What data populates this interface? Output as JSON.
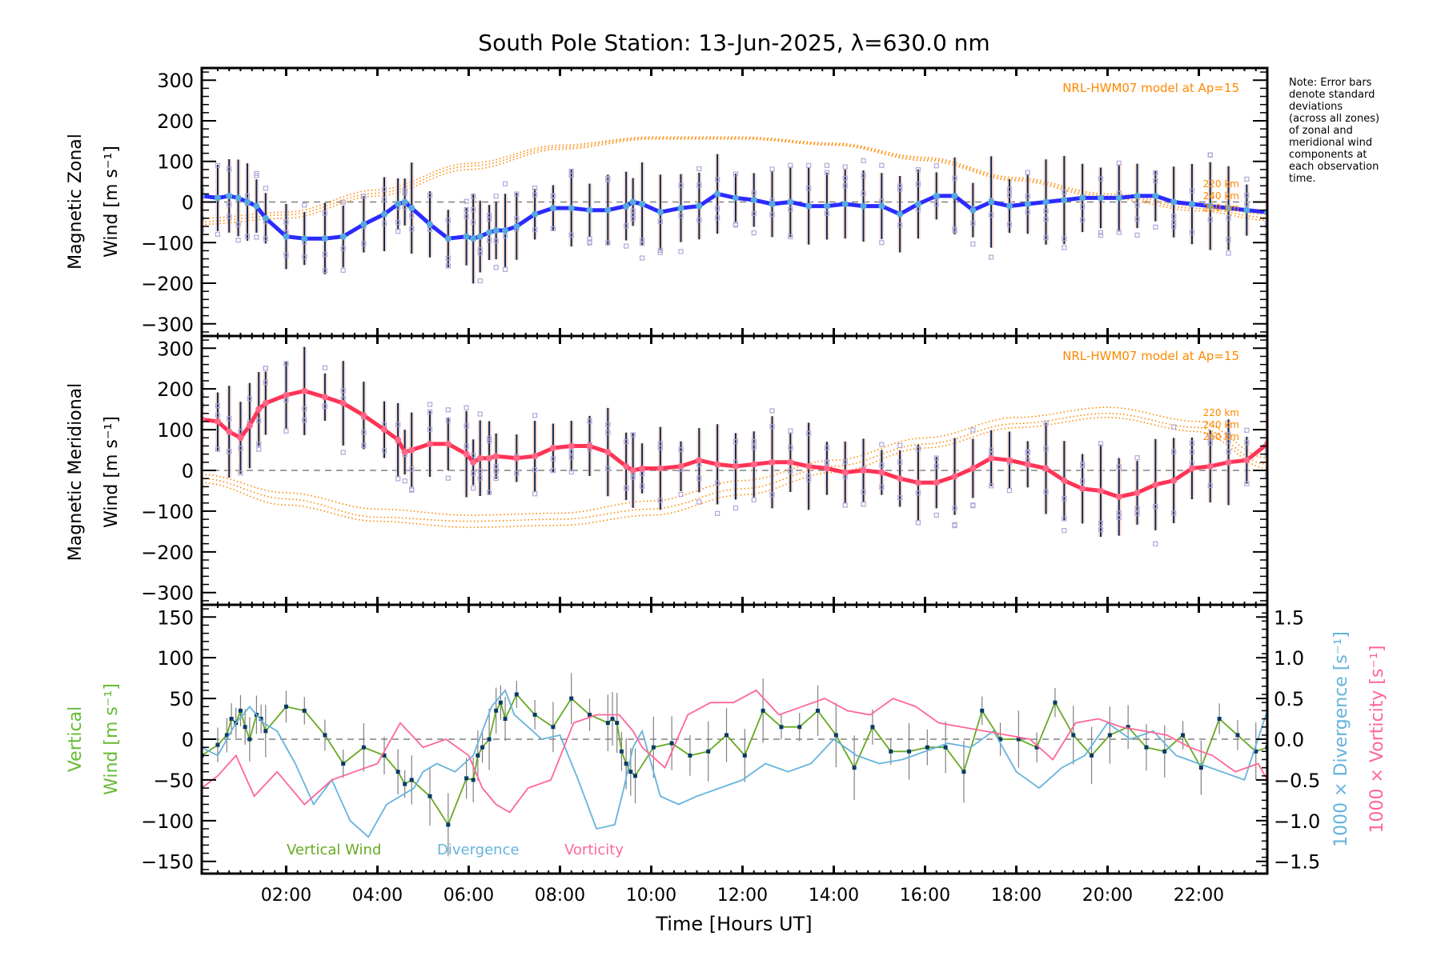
{
  "chart_data": {
    "type": "line",
    "title": "South Pole Station: 13-Jun-2025, λ=630.0 nm",
    "xlabel": "Time [Hours UT]",
    "xlim": [
      0.15,
      23.5
    ],
    "x_ticks": [
      2,
      4,
      6,
      8,
      10,
      12,
      14,
      16,
      18,
      20,
      22
    ],
    "x_tick_labels": [
      "02:00",
      "04:00",
      "06:00",
      "08:00",
      "10:00",
      "12:00",
      "14:00",
      "16:00",
      "18:00",
      "20:00",
      "22:00"
    ],
    "note": "Note: Error bars\ndenote standard\ndeviations\n(across all zones)\nof zonal and\nmeridional wind\ncomponents at\neach observation\ntime.",
    "panels": [
      {
        "id": "zonal",
        "ylabel_line1": "Magnetic Zonal",
        "ylabel_line2": "Wind [m s⁻¹]",
        "ylim": [
          -330,
          330
        ],
        "y_ticks": [
          300,
          200,
          100,
          0,
          -100,
          -200,
          -300
        ],
        "model_label": "NRL-HWM07 model at Ap=15",
        "model_alt_labels": [
          "220 km",
          "240 km",
          "260 km"
        ],
        "series": {
          "name": "Magnetic Zonal Wind",
          "color": "#2b2bff",
          "x": [
            0.15,
            0.5,
            0.75,
            0.95,
            1.15,
            1.35,
            1.55,
            2.0,
            2.4,
            2.85,
            3.25,
            3.7,
            4.15,
            4.45,
            4.6,
            4.75,
            5.15,
            5.55,
            5.95,
            6.1,
            6.25,
            6.45,
            6.6,
            6.8,
            7.05,
            7.45,
            7.85,
            8.25,
            8.65,
            9.05,
            9.45,
            9.6,
            9.8,
            10.2,
            10.65,
            11.05,
            11.45,
            11.85,
            12.25,
            12.65,
            13.05,
            13.45,
            13.85,
            14.25,
            14.65,
            15.05,
            15.45,
            15.85,
            16.25,
            16.65,
            17.05,
            17.45,
            17.85,
            18.25,
            18.65,
            19.05,
            19.45,
            19.85,
            20.25,
            20.65,
            21.05,
            21.45,
            21.85,
            22.25,
            22.65,
            23.05,
            23.5
          ],
          "values": [
            15,
            10,
            15,
            10,
            0,
            -10,
            -40,
            -85,
            -90,
            -90,
            -85,
            -55,
            -30,
            -5,
            0,
            -15,
            -55,
            -90,
            -85,
            -90,
            -85,
            -75,
            -70,
            -70,
            -60,
            -30,
            -15,
            -15,
            -20,
            -20,
            -10,
            0,
            -5,
            -25,
            -15,
            -10,
            20,
            10,
            5,
            -5,
            0,
            -10,
            -10,
            -5,
            -10,
            -10,
            -30,
            -5,
            15,
            15,
            -20,
            0,
            -10,
            -5,
            0,
            5,
            10,
            10,
            10,
            15,
            15,
            0,
            -5,
            -10,
            -15,
            -20,
            -25
          ]
        },
        "model_curves": [
          {
            "name": "220 km",
            "x": [
              0.15,
              2,
              4,
              6,
              8,
              10,
              12,
              14,
              16,
              18,
              20,
              22,
              23.5
            ],
            "values": [
              -40,
              -25,
              30,
              95,
              140,
              160,
              160,
              145,
              110,
              60,
              20,
              -10,
              -30
            ]
          },
          {
            "name": "240 km",
            "x": [
              0.15,
              2,
              4,
              6,
              8,
              10,
              12,
              14,
              16,
              18,
              20,
              22,
              23.5
            ],
            "values": [
              -48,
              -32,
              22,
              88,
              135,
              158,
              158,
              142,
              106,
              56,
              15,
              -16,
              -38
            ]
          },
          {
            "name": "260 km",
            "x": [
              0.15,
              2,
              4,
              6,
              8,
              10,
              12,
              14,
              16,
              18,
              20,
              22,
              23.5
            ],
            "values": [
              -55,
              -40,
              15,
              80,
              130,
              155,
              155,
              140,
              102,
              52,
              10,
              -22,
              -45
            ]
          }
        ]
      },
      {
        "id": "meridional",
        "ylabel_line1": "Magnetic Meridional",
        "ylabel_line2": "Wind [m s⁻¹]",
        "ylim": [
          -330,
          330
        ],
        "y_ticks": [
          300,
          200,
          100,
          0,
          -100,
          -200,
          -300
        ],
        "model_label": "NRL-HWM07 model at Ap=15",
        "model_alt_labels": [
          "220 km",
          "240 km",
          "260 km"
        ],
        "series": {
          "name": "Magnetic Meridional Wind",
          "color": "#ff3355",
          "x": [
            0.15,
            0.5,
            0.75,
            1.0,
            1.2,
            1.4,
            1.55,
            2.0,
            2.4,
            2.85,
            3.25,
            3.7,
            4.15,
            4.45,
            4.6,
            4.75,
            5.15,
            5.55,
            5.95,
            6.1,
            6.25,
            6.45,
            6.6,
            7.05,
            7.45,
            7.85,
            8.25,
            8.65,
            9.05,
            9.45,
            9.6,
            9.8,
            10.2,
            10.65,
            11.05,
            11.45,
            11.85,
            12.25,
            12.65,
            13.05,
            13.45,
            13.85,
            14.25,
            14.65,
            15.05,
            15.45,
            15.85,
            16.25,
            16.65,
            17.05,
            17.45,
            17.85,
            18.25,
            18.65,
            19.05,
            19.45,
            19.85,
            20.25,
            20.65,
            21.05,
            21.45,
            21.85,
            22.25,
            22.65,
            23.05,
            23.5
          ],
          "values": [
            125,
            120,
            95,
            80,
            110,
            150,
            165,
            185,
            195,
            180,
            165,
            135,
            100,
            75,
            45,
            50,
            65,
            65,
            40,
            20,
            30,
            30,
            35,
            30,
            35,
            55,
            60,
            60,
            45,
            10,
            0,
            5,
            5,
            10,
            25,
            15,
            10,
            15,
            20,
            20,
            10,
            5,
            -5,
            0,
            -5,
            -20,
            -30,
            -30,
            -15,
            5,
            30,
            25,
            15,
            5,
            -25,
            -45,
            -50,
            -65,
            -55,
            -35,
            -25,
            5,
            10,
            20,
            25,
            65
          ]
        },
        "model_curves": [
          {
            "name": "220 km",
            "x": [
              0.15,
              2,
              4,
              6,
              8,
              10,
              12,
              14,
              16,
              18,
              20,
              22,
              23.5
            ],
            "values": [
              -10,
              -55,
              -95,
              -110,
              -105,
              -75,
              -25,
              25,
              80,
              130,
              155,
              120,
              30
            ]
          },
          {
            "name": "240 km",
            "x": [
              0.15,
              2,
              4,
              6,
              8,
              10,
              12,
              14,
              16,
              18,
              20,
              22,
              23.5
            ],
            "values": [
              -20,
              -70,
              -115,
              -125,
              -120,
              -95,
              -45,
              10,
              65,
              115,
              140,
              105,
              15
            ]
          },
          {
            "name": "260 km",
            "x": [
              0.15,
              2,
              4,
              6,
              8,
              10,
              12,
              14,
              16,
              18,
              20,
              22,
              23.5
            ],
            "values": [
              -30,
              -85,
              -125,
              -140,
              -135,
              -110,
              -60,
              -5,
              55,
              105,
              130,
              95,
              5
            ]
          }
        ]
      },
      {
        "id": "vertical",
        "ylabel_line1": "Vertical",
        "ylabel_line2": "Wind [m s⁻¹]",
        "ylim": [
          -165,
          165
        ],
        "y_ticks": [
          150,
          100,
          50,
          0,
          -50,
          -100,
          -150
        ],
        "y2label_div": "1000 × Divergence [s⁻¹]",
        "y2label_vort": "1000 × Vorticity [s⁻¹]",
        "y2lim": [
          -1.65,
          1.65
        ],
        "y2_ticks": [
          1.5,
          1.0,
          0.5,
          0.0,
          -0.5,
          -1.0,
          -1.5
        ],
        "y2_tick_labels": [
          "1.5",
          "1.0",
          "0.5",
          "0.0",
          "−0.5",
          "−1.0",
          "−1.5"
        ],
        "legend": [
          "Vertical Wind",
          "Divergence",
          "Vorticity"
        ],
        "series": [
          {
            "name": "Vertical Wind",
            "color": "#66aa22",
            "axis": "left",
            "x": [
              0.15,
              0.5,
              0.7,
              0.8,
              0.9,
              1.0,
              1.1,
              1.2,
              1.35,
              1.45,
              1.55,
              2.0,
              2.4,
              2.85,
              3.25,
              3.7,
              4.15,
              4.45,
              4.6,
              4.75,
              5.15,
              5.55,
              5.95,
              6.1,
              6.2,
              6.3,
              6.45,
              6.6,
              6.7,
              6.8,
              7.05,
              7.45,
              7.85,
              8.25,
              8.65,
              9.05,
              9.15,
              9.25,
              9.35,
              9.45,
              9.55,
              9.65,
              10.05,
              10.45,
              10.85,
              11.25,
              11.65,
              12.05,
              12.45,
              12.85,
              13.25,
              13.65,
              14.05,
              14.45,
              14.85,
              15.25,
              15.65,
              16.05,
              16.45,
              16.85,
              17.25,
              17.65,
              18.05,
              18.45,
              18.85,
              19.25,
              19.65,
              20.05,
              20.45,
              20.85,
              21.25,
              21.65,
              22.05,
              22.45,
              22.85,
              23.25,
              23.5
            ],
            "values": [
              -20,
              -7,
              5,
              25,
              20,
              35,
              15,
              0,
              30,
              25,
              10,
              40,
              35,
              5,
              -30,
              -10,
              -20,
              -40,
              -55,
              -50,
              -70,
              -105,
              -48,
              -50,
              -20,
              -10,
              0,
              35,
              45,
              25,
              55,
              30,
              15,
              50,
              30,
              20,
              25,
              20,
              -15,
              -30,
              -40,
              -45,
              -10,
              -5,
              -20,
              -15,
              5,
              -20,
              35,
              15,
              15,
              35,
              5,
              -35,
              15,
              -15,
              -15,
              -10,
              -10,
              -40,
              35,
              0,
              0,
              -10,
              45,
              5,
              -20,
              5,
              15,
              -10,
              -15,
              5,
              -35,
              25,
              5,
              -15,
              -10
            ]
          },
          {
            "name": "Divergence",
            "color": "#66b3dd",
            "axis": "right",
            "x": [
              0.15,
              0.5,
              0.9,
              1.2,
              1.5,
              1.8,
              2.2,
              2.6,
              3.0,
              3.4,
              3.8,
              4.2,
              4.5,
              4.8,
              5.0,
              5.3,
              5.7,
              6.1,
              6.3,
              6.5,
              6.8,
              7.0,
              7.2,
              7.6,
              8.0,
              8.4,
              8.8,
              9.2,
              9.4,
              9.6,
              9.8,
              10.2,
              10.6,
              11.0,
              11.5,
              12.0,
              12.5,
              13.0,
              13.5,
              14.0,
              14.5,
              15.0,
              15.5,
              16.0,
              16.5,
              17.0,
              17.5,
              18.0,
              18.5,
              19.0,
              19.5,
              20.0,
              20.5,
              21.0,
              21.5,
              22.0,
              22.5,
              23.0,
              23.5
            ],
            "values": [
              -0.1,
              -0.2,
              0.2,
              0.4,
              0.2,
              0.1,
              -0.3,
              -0.8,
              -0.5,
              -1.0,
              -1.2,
              -0.8,
              -0.7,
              -0.6,
              -0.4,
              -0.3,
              -0.4,
              -0.2,
              0.1,
              0.4,
              0.6,
              0.3,
              0.2,
              0.0,
              0.05,
              -0.5,
              -1.1,
              -1.05,
              -0.6,
              -0.1,
              0.1,
              -0.7,
              -0.8,
              -0.7,
              -0.6,
              -0.5,
              -0.3,
              -0.4,
              -0.3,
              0.0,
              -0.2,
              -0.3,
              -0.25,
              -0.15,
              -0.05,
              -0.1,
              0.1,
              -0.4,
              -0.6,
              -0.35,
              -0.2,
              0.2,
              0.0,
              0.1,
              -0.2,
              -0.3,
              -0.4,
              -0.5,
              0.35
            ]
          },
          {
            "name": "Vorticity",
            "color": "#ff6699",
            "axis": "right",
            "x": [
              0.15,
              0.5,
              0.9,
              1.3,
              1.8,
              2.4,
              3.0,
              3.5,
              4.0,
              4.5,
              5.0,
              5.5,
              6.0,
              6.3,
              6.6,
              6.9,
              7.3,
              7.8,
              8.3,
              8.8,
              9.3,
              9.6,
              9.8,
              10.3,
              10.8,
              11.3,
              11.8,
              12.3,
              12.8,
              13.3,
              13.8,
              14.3,
              14.8,
              15.3,
              15.8,
              16.3,
              16.8,
              17.3,
              17.8,
              18.3,
              18.8,
              19.3,
              19.8,
              20.3,
              20.8,
              21.3,
              21.8,
              22.3,
              22.8,
              23.3,
              23.5
            ],
            "values": [
              -0.6,
              -0.45,
              -0.2,
              -0.7,
              -0.4,
              -0.8,
              -0.5,
              -0.4,
              -0.3,
              0.2,
              -0.1,
              0.0,
              -0.2,
              -0.6,
              -0.8,
              -0.9,
              -0.6,
              -0.5,
              0.2,
              0.3,
              0.3,
              0.1,
              -0.1,
              -0.35,
              0.3,
              0.45,
              0.45,
              0.6,
              0.3,
              0.4,
              0.5,
              0.35,
              0.3,
              0.5,
              0.4,
              0.2,
              0.15,
              0.1,
              0.05,
              0.0,
              -0.25,
              0.2,
              0.25,
              0.15,
              0.1,
              0.05,
              -0.1,
              -0.2,
              -0.4,
              -0.3,
              -0.5
            ]
          }
        ]
      }
    ],
    "colors": {
      "model": "#ff8800",
      "error_bar": "#0a2a55",
      "sample_points": "#b0a8d8",
      "zero_line": "#808080",
      "vertical_label": "#66bb33",
      "divergence_label": "#66b3dd",
      "vorticity_label": "#ff6699"
    }
  }
}
